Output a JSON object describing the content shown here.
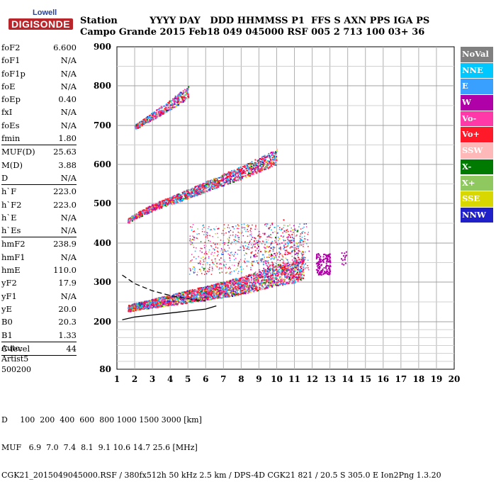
{
  "logo": {
    "top": "Lowell",
    "bottom": "DIGISONDE"
  },
  "header": {
    "line1": "Station          YYYY DAY   DDD HHMMSS P1  FFS S AXN PPS IGA PS",
    "line2": "Campo Grande 2015 Feb18 049 045000 RSF 005 2 713 100 03+ 36"
  },
  "params": [
    {
      "label": "foF2",
      "value": "6.600"
    },
    {
      "label": "foF1",
      "value": "N/A"
    },
    {
      "label": "foF1p",
      "value": "N/A"
    },
    {
      "label": "foE",
      "value": "N/A"
    },
    {
      "label": "foEp",
      "value": "0.40"
    },
    {
      "label": "fxI",
      "value": "N/A"
    },
    {
      "label": "foEs",
      "value": "N/A"
    },
    {
      "label": "fmin",
      "value": "1.80",
      "sep": true
    },
    {
      "label": "MUF(D)",
      "value": "25.63"
    },
    {
      "label": "M(D)",
      "value": "3.88"
    },
    {
      "label": "D",
      "value": "N/A",
      "sep": true
    },
    {
      "label": "h`F",
      "value": "223.0"
    },
    {
      "label": "h`F2",
      "value": "223.0"
    },
    {
      "label": "h`E",
      "value": "N/A"
    },
    {
      "label": "h`Es",
      "value": "N/A",
      "sep": true
    },
    {
      "label": "hmF2",
      "value": "238.9"
    },
    {
      "label": "hmF1",
      "value": "N/A"
    },
    {
      "label": "hmE",
      "value": "110.0"
    },
    {
      "label": "yF2",
      "value": "17.9"
    },
    {
      "label": "yF1",
      "value": "N/A"
    },
    {
      "label": "yE",
      "value": "20.0"
    },
    {
      "label": "B0",
      "value": "20.3"
    },
    {
      "label": "B1",
      "value": "1.33",
      "sep": true
    },
    {
      "label": "C-level",
      "value": "44",
      "sep": true
    }
  ],
  "auto": [
    "Auto:",
    "Artist5",
    "500200"
  ],
  "legend": [
    {
      "label": "NoVal",
      "bg": "#808080",
      "fg": "#ffffff"
    },
    {
      "label": "NNE",
      "bg": "#00c8ff",
      "fg": "#ffffff"
    },
    {
      "label": "E",
      "bg": "#3aa0ff",
      "fg": "#ffffff"
    },
    {
      "label": "W",
      "bg": "#b000a8",
      "fg": "#ffffff"
    },
    {
      "label": "Vo-",
      "bg": "#ff3aa8",
      "fg": "#ffffff"
    },
    {
      "label": "Vo+",
      "bg": "#ff1a2a",
      "fg": "#ffffff"
    },
    {
      "label": "SSW",
      "bg": "#ffb8b8",
      "fg": "#ffffff"
    },
    {
      "label": "X-",
      "bg": "#007a00",
      "fg": "#ffffff"
    },
    {
      "label": "X+",
      "bg": "#90c860",
      "fg": "#ffffff"
    },
    {
      "label": "SSE",
      "bg": "#d8d800",
      "fg": "#ffffff"
    },
    {
      "label": "NNW",
      "bg": "#2020c8",
      "fg": "#ffffff"
    }
  ],
  "bottom": {
    "line1": "D     100  200  400  600  800 1000 1500 3000 [km]",
    "line2": "MUF   6.9  7.0  7.4  8.1  9.1 10.6 14.7 25.6 [MHz]",
    "line3": "CGK21_2015049045000.RSF / 380fx512h 50 kHz 2.5 km / DPS-4D CGK21 821 / 20.5 S 305.0 E Ion2Png 1.3.20"
  },
  "chart_data": {
    "type": "scatter",
    "title": "",
    "xlabel": "",
    "ylabel": "",
    "xlim": [
      1,
      20
    ],
    "ylim": [
      80,
      900
    ],
    "x_ticks": [
      1,
      2,
      3,
      4,
      5,
      6,
      7,
      8,
      9,
      10,
      11,
      12,
      13,
      14,
      15,
      16,
      17,
      18,
      19,
      20
    ],
    "y_ticks": [
      80,
      200,
      300,
      400,
      500,
      600,
      700,
      800,
      900
    ],
    "y_scale": "log-like (virtual height)",
    "grid": true,
    "legend_position": "right",
    "traces": [
      {
        "name": "F2 trace (1st hop)",
        "freq_MHz": [
          1.6,
          2.0,
          3.0,
          4.0,
          5.0,
          6.0,
          7.0,
          8.0,
          9.0,
          10.0,
          11.0,
          11.5
        ],
        "height_km": [
          232,
          236,
          244,
          252,
          260,
          268,
          276,
          286,
          298,
          310,
          320,
          330
        ]
      },
      {
        "name": "F2 trace (2nd hop)",
        "freq_MHz": [
          1.6,
          2.0,
          3.0,
          4.0,
          5.0,
          6.0,
          7.0,
          8.0,
          9.0,
          10.0
        ],
        "height_km": [
          455,
          466,
          488,
          505,
          522,
          540,
          558,
          575,
          595,
          615
        ]
      },
      {
        "name": "F2 trace (3rd hop)",
        "freq_MHz": [
          2.0,
          2.5,
          3.0,
          3.5,
          4.0,
          4.5,
          5.0
        ],
        "height_km": [
          695,
          708,
          722,
          736,
          750,
          765,
          780
        ]
      }
    ],
    "profile_solid": {
      "freq_MHz": [
        1.3,
        2.0,
        3.0,
        4.0,
        5.0,
        6.0,
        6.6
      ],
      "height_km": [
        205,
        212,
        217,
        222,
        227,
        232,
        240
      ]
    },
    "profile_dashed": {
      "freq_MHz": [
        1.3,
        2.0,
        3.0,
        4.0,
        5.0,
        6.0
      ],
      "height_km": [
        318,
        296,
        278,
        266,
        258,
        252
      ]
    }
  }
}
